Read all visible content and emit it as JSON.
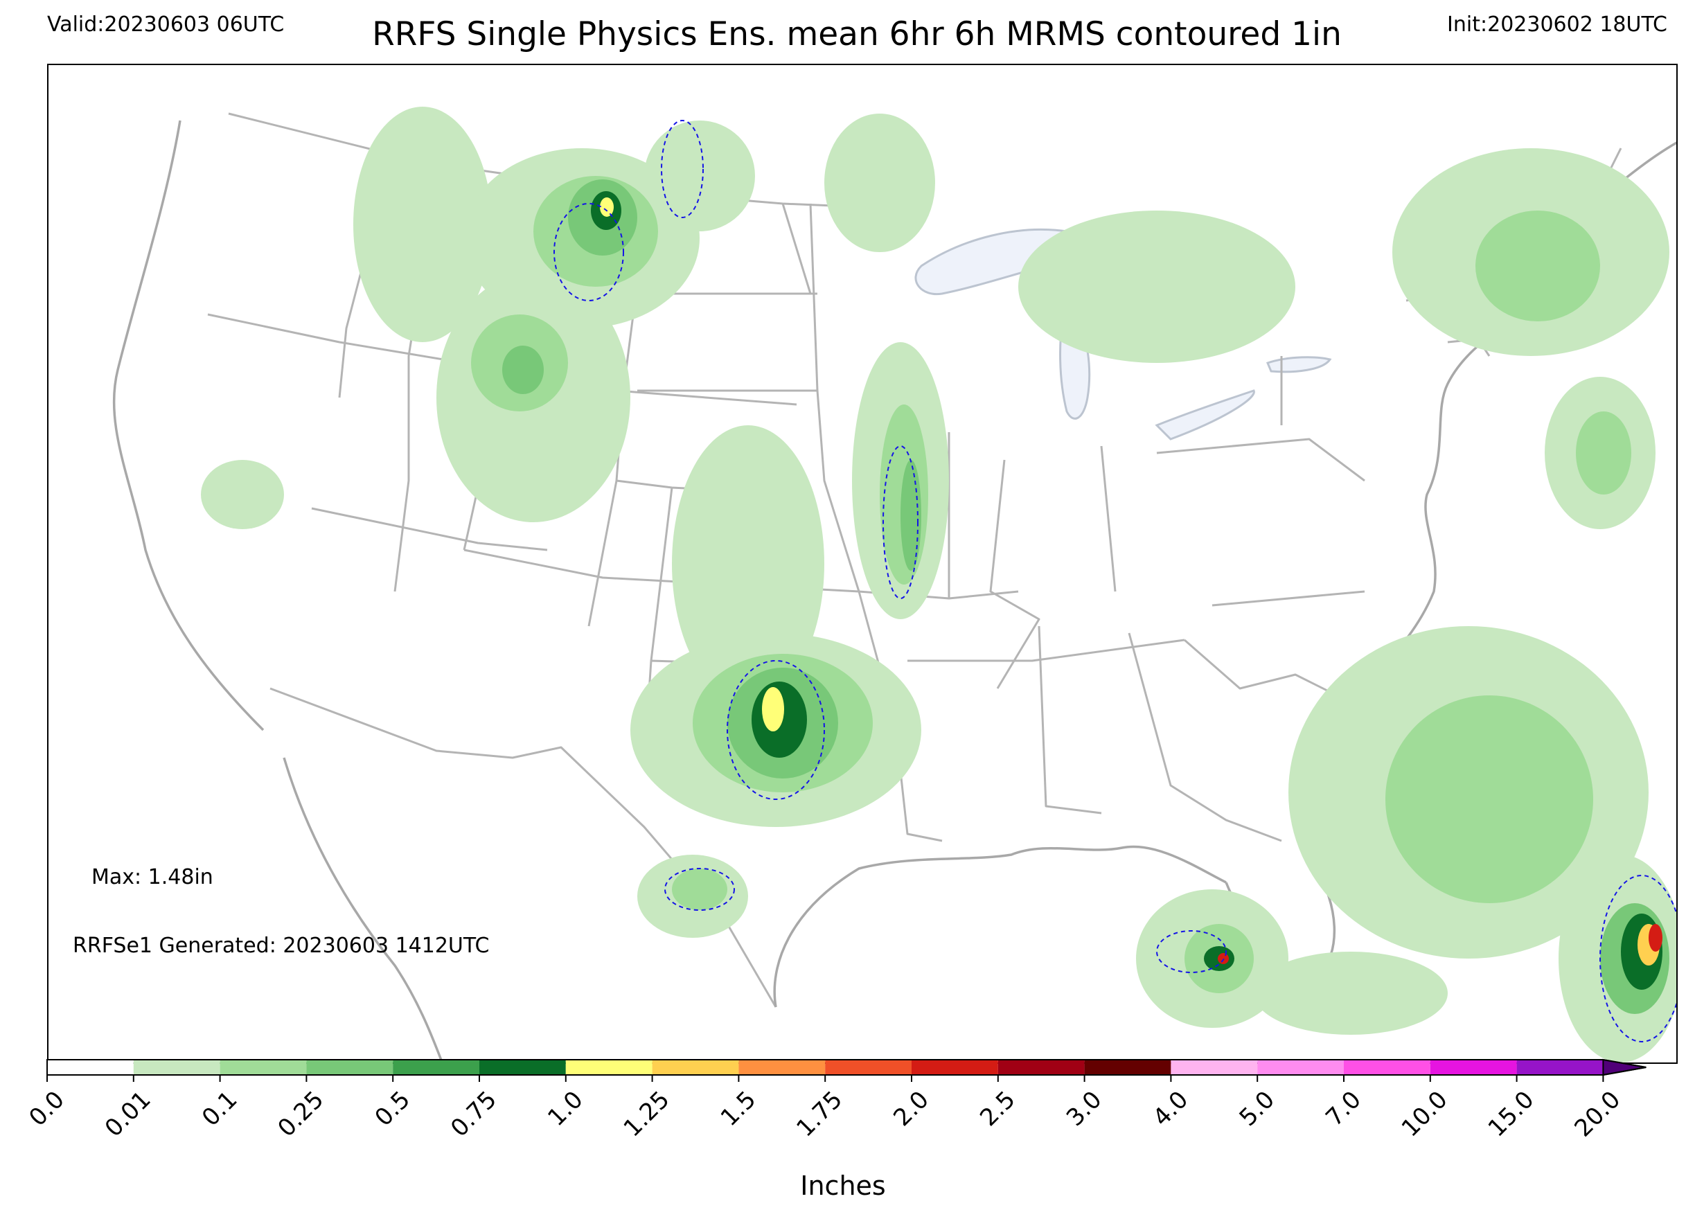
{
  "header": {
    "valid": "Valid:20230603 06UTC",
    "title": "RRFS Single Physics Ens. mean 6hr 6h MRMS contoured 1in",
    "init": "Init:20230602 18UTC"
  },
  "annotations": {
    "max": "Max: 1.48in",
    "generated": "RRFSe1 Generated: 20230603 1412UTC"
  },
  "colorbar": {
    "label": "Inches",
    "ticks": [
      "0.0",
      "0.01",
      "0.1",
      "0.25",
      "0.5",
      "0.75",
      "1.0",
      "1.25",
      "1.5",
      "1.75",
      "2.0",
      "2.5",
      "3.0",
      "4.0",
      "5.0",
      "7.0",
      "10.0",
      "15.0",
      "20.0"
    ],
    "colors": [
      "#ffffff",
      "#c8e8c0",
      "#a0dc98",
      "#78c878",
      "#3ca04c",
      "#0a6e28",
      "#ffff78",
      "#ffd050",
      "#ff9040",
      "#f05028",
      "#d41c14",
      "#a00014",
      "#640000",
      "#ffb4f0",
      "#ff8cf0",
      "#ff50e6",
      "#e614e0",
      "#9614c8"
    ],
    "extend_color": "#500078"
  },
  "map": {
    "projection": "Lambert Conformal over CONUS",
    "precip_colors": {
      "light": "#c8e8c0",
      "l2": "#a0dc98",
      "mid": "#78c878",
      "m2": "#3ca04c",
      "dark": "#0a6e28",
      "yellow": "#ffff78",
      "orange": "#ffd050",
      "red": "#d41c14"
    },
    "mrms_contour_color": "#1414e6",
    "lake_color": "#eef2fa",
    "border_color": "#b4b4b4"
  }
}
